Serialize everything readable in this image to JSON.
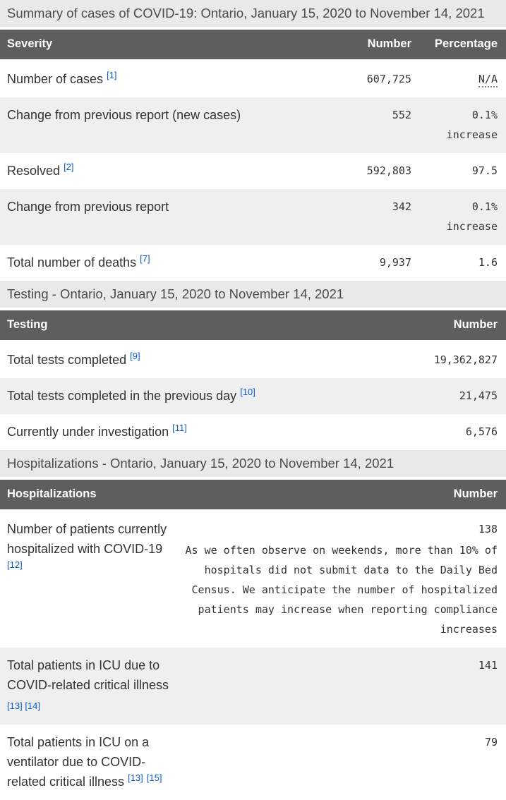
{
  "colors": {
    "header_bg": "#5e5e5e",
    "header_text": "#ffffff",
    "caption_bg": "#e9e9e9",
    "row_alt_bg": "#efefef",
    "body_text": "#333333",
    "footnote_link": "#0a5dc2"
  },
  "tables": [
    {
      "caption": "Summary of cases of COVID-19: Ontario, January 15, 2020 to November 14, 2021",
      "headers": {
        "col1": "Severity",
        "col2": "Number",
        "col3": "Percentage"
      },
      "rows": [
        {
          "label": "Number of cases",
          "footnotes": [
            "[1]"
          ],
          "number": "607,725",
          "percentage": "N/A"
        },
        {
          "label": "Change from previous report (new cases)",
          "footnotes": [],
          "number": "552",
          "percentage": "0.1% increase"
        },
        {
          "label": "Resolved",
          "footnotes": [
            "[2]"
          ],
          "number": "592,803",
          "percentage": "97.5"
        },
        {
          "label": "Change from previous report",
          "footnotes": [],
          "number": "342",
          "percentage": "0.1% increase"
        },
        {
          "label": "Total number of deaths",
          "footnotes": [
            "[7]"
          ],
          "number": "9,937",
          "percentage": "1.6"
        }
      ]
    },
    {
      "caption": "Testing - Ontario, January 15, 2020 to November 14, 2021",
      "headers": {
        "col1": "Testing",
        "col2": "Number"
      },
      "rows": [
        {
          "label": "Total tests completed",
          "footnotes": [
            "[9]"
          ],
          "number": "19,362,827"
        },
        {
          "label": "Total tests completed in the previous day",
          "footnotes": [
            "[10]"
          ],
          "number": "21,475"
        },
        {
          "label": "Currently under investigation",
          "footnotes": [
            "[11]"
          ],
          "number": "6,576"
        }
      ]
    },
    {
      "caption": "Hospitalizations - Ontario, January 15, 2020 to November 14, 2021",
      "headers": {
        "col1": "Hospitalizations",
        "col2": "Number"
      },
      "rows": [
        {
          "label": "Number of patients currently hospitalized with COVID-19",
          "footnotes": [
            "[12]"
          ],
          "number": "138",
          "note": "As we often observe on weekends, more than 10% of hospitals did not submit data to the Daily Bed Census. We anticipate the number of hospitalized patients may increase when reporting compliance increases"
        },
        {
          "label": "Total patients in ICU due to COVID-related critical illness",
          "footnotes": [
            "[13]",
            "[14]"
          ],
          "number": "141"
        },
        {
          "label": "Total patients in ICU on a ventilator due to COVID-related critical illness",
          "footnotes": [
            "[13]",
            "[15]"
          ],
          "number": "79"
        }
      ]
    }
  ]
}
